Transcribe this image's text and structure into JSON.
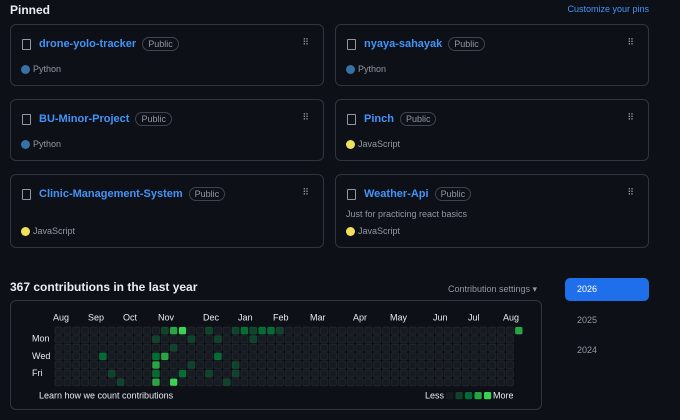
{
  "header": {
    "title": "Pinned",
    "customize": "Customize your pins"
  },
  "pinned": [
    {
      "name": "drone-yolo-tracker",
      "visibility": "Public",
      "language": "Python",
      "language_color": "#3572A5"
    },
    {
      "name": "nyaya-sahayak",
      "visibility": "Public",
      "language": "Python",
      "language_color": "#3572A5"
    },
    {
      "name": "BU-Minor-Project",
      "visibility": "Public",
      "language": "Python",
      "language_color": "#3572A5"
    },
    {
      "name": "Pinch",
      "visibility": "Public",
      "language": "JavaScript",
      "language_color": "#f1e05a"
    },
    {
      "name": "Clinic-Management-System",
      "visibility": "Public",
      "language": "JavaScript",
      "language_color": "#f1e05a"
    },
    {
      "name": "Weather-Api",
      "visibility": "Public",
      "description": "Just for practicing react basics",
      "language": "JavaScript",
      "language_color": "#f1e05a"
    }
  ],
  "contributions": {
    "title": "367 contributions in the last year",
    "settings": "Contribution settings",
    "months": [
      "Aug",
      "Sep",
      "Oct",
      "Nov",
      "Dec",
      "Jan",
      "Feb",
      "Mar",
      "Apr",
      "May",
      "Jun",
      "Jul",
      "Aug"
    ],
    "days": [
      "Mon",
      "Wed",
      "Fri"
    ],
    "weeks": [
      [
        0,
        0,
        0,
        0,
        0,
        0,
        0
      ],
      [
        0,
        0,
        0,
        0,
        0,
        0,
        0
      ],
      [
        0,
        0,
        0,
        0,
        0,
        0,
        0
      ],
      [
        0,
        0,
        0,
        0,
        0,
        0,
        0
      ],
      [
        0,
        0,
        0,
        0,
        0,
        0,
        0
      ],
      [
        0,
        0,
        0,
        2,
        0,
        0,
        0
      ],
      [
        0,
        0,
        0,
        0,
        0,
        1,
        0
      ],
      [
        0,
        0,
        0,
        0,
        0,
        0,
        1
      ],
      [
        0,
        0,
        0,
        0,
        0,
        0,
        0
      ],
      [
        0,
        0,
        0,
        0,
        0,
        0,
        0
      ],
      [
        0,
        0,
        0,
        0,
        0,
        0,
        0
      ],
      [
        0,
        1,
        0,
        2,
        3,
        2,
        3
      ],
      [
        1,
        0,
        0,
        3,
        0,
        0,
        0
      ],
      [
        3,
        0,
        1,
        0,
        0,
        0,
        4
      ],
      [
        4,
        0,
        0,
        0,
        0,
        2,
        0
      ],
      [
        0,
        1,
        0,
        0,
        1,
        0,
        0
      ],
      [
        0,
        0,
        0,
        0,
        0,
        0,
        0
      ],
      [
        1,
        0,
        0,
        0,
        0,
        1,
        0
      ],
      [
        0,
        1,
        0,
        2,
        0,
        0,
        0
      ],
      [
        0,
        0,
        0,
        0,
        0,
        0,
        1
      ],
      [
        1,
        0,
        0,
        0,
        1,
        1,
        0
      ],
      [
        2,
        0,
        0,
        0,
        0,
        0,
        0
      ],
      [
        1,
        1,
        0,
        0,
        0,
        0,
        0
      ],
      [
        2,
        0,
        0,
        0,
        0,
        0,
        0
      ],
      [
        2,
        0,
        0,
        0,
        0,
        0,
        0
      ],
      [
        1,
        0,
        0,
        0,
        0,
        0,
        0
      ],
      [
        0,
        0,
        0,
        0,
        0,
        0,
        0
      ],
      [
        0,
        0,
        0,
        0,
        0,
        0,
        0
      ],
      [
        0,
        0,
        0,
        0,
        0,
        0,
        0
      ],
      [
        0,
        0,
        0,
        0,
        0,
        0,
        0
      ],
      [
        0,
        0,
        0,
        0,
        0,
        0,
        0
      ],
      [
        0,
        0,
        0,
        0,
        0,
        0,
        0
      ],
      [
        0,
        0,
        0,
        0,
        0,
        0,
        0
      ],
      [
        0,
        0,
        0,
        0,
        0,
        0,
        0
      ],
      [
        0,
        0,
        0,
        0,
        0,
        0,
        0
      ],
      [
        0,
        0,
        0,
        0,
        0,
        0,
        0
      ],
      [
        0,
        0,
        0,
        0,
        0,
        0,
        0
      ],
      [
        0,
        0,
        0,
        0,
        0,
        0,
        0
      ],
      [
        0,
        0,
        0,
        0,
        0,
        0,
        0
      ],
      [
        0,
        0,
        0,
        0,
        0,
        0,
        0
      ],
      [
        0,
        0,
        0,
        0,
        0,
        0,
        0
      ],
      [
        0,
        0,
        0,
        0,
        0,
        0,
        0
      ],
      [
        0,
        0,
        0,
        0,
        0,
        0,
        0
      ],
      [
        0,
        0,
        0,
        0,
        0,
        0,
        0
      ],
      [
        0,
        0,
        0,
        0,
        0,
        0,
        0
      ],
      [
        0,
        0,
        0,
        0,
        0,
        0,
        0
      ],
      [
        0,
        0,
        0,
        0,
        0,
        0,
        0
      ],
      [
        0,
        0,
        0,
        0,
        0,
        0,
        0
      ],
      [
        0,
        0,
        0,
        0,
        0,
        0,
        0
      ],
      [
        0,
        0,
        0,
        0,
        0,
        0,
        0
      ],
      [
        0,
        0,
        0,
        0,
        0,
        0,
        0
      ],
      [
        0,
        0,
        0,
        0,
        0,
        0,
        0
      ],
      [
        3
      ]
    ],
    "level_colors": [
      "#161b22",
      "#0e4429",
      "#006d32",
      "#26a641",
      "#39d353"
    ],
    "legend_levels": [
      0,
      1,
      2,
      3,
      4
    ],
    "learn": "Learn how we count contributions",
    "less": "Less",
    "more": "More"
  },
  "years": {
    "items": [
      "2026",
      "2025",
      "2024"
    ],
    "selected": 0
  }
}
